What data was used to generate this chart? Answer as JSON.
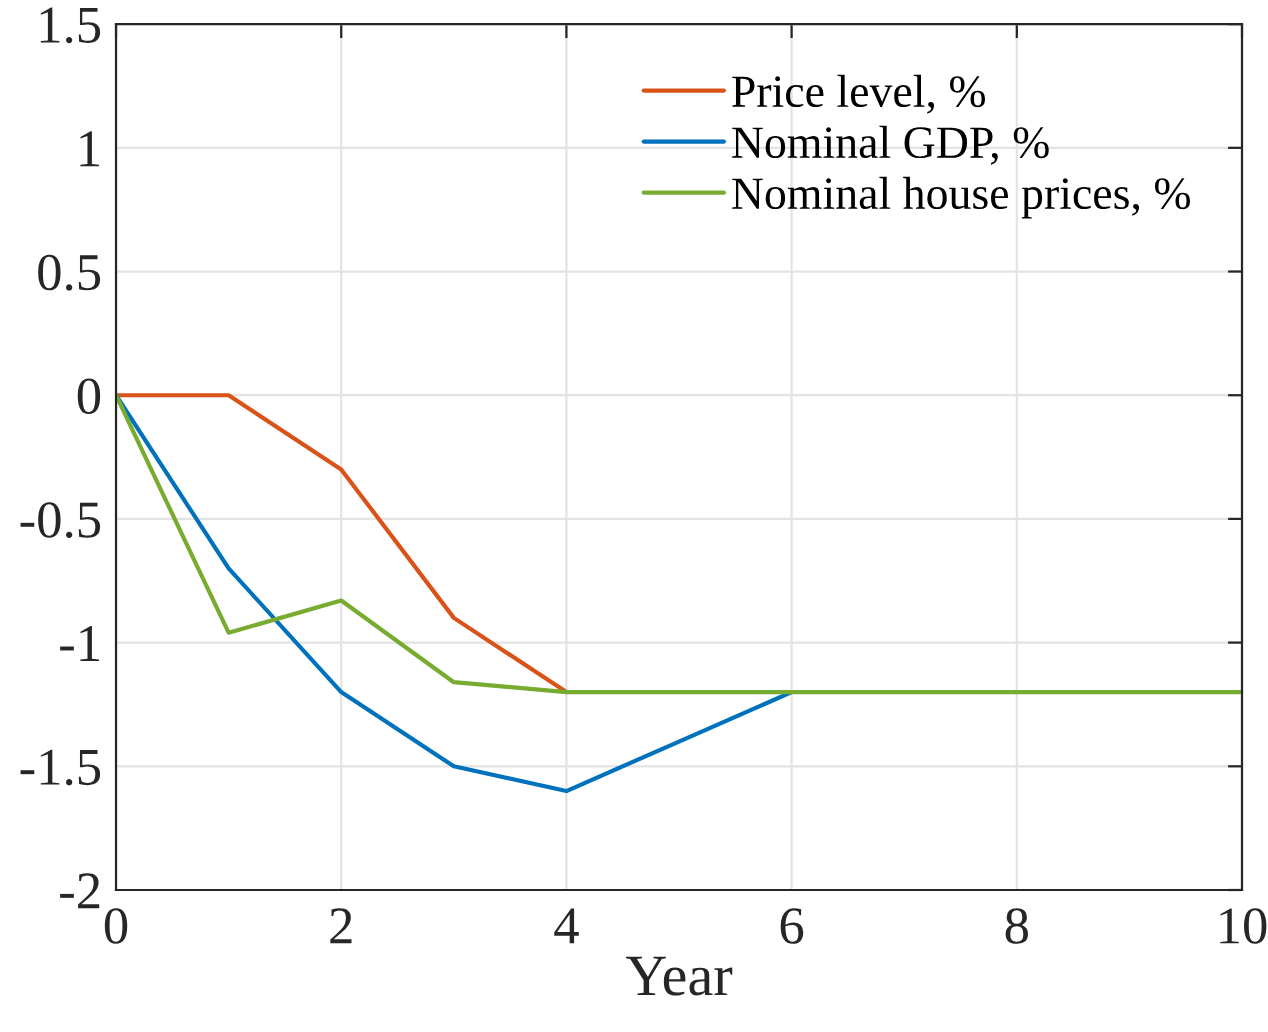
{
  "chart_data": {
    "type": "line",
    "xlabel": "Year",
    "x": [
      0,
      1,
      2,
      3,
      4,
      5,
      6,
      7,
      8,
      9,
      10
    ],
    "series": [
      {
        "name": "Price level, %",
        "color": "#d95319",
        "values": [
          0,
          0,
          -0.3,
          -0.9,
          -1.2,
          null,
          null,
          null,
          null,
          null,
          null
        ]
      },
      {
        "name": "Nominal GDP, %",
        "color": "#0072bd",
        "values": [
          0,
          -0.7,
          -1.2,
          -1.5,
          -1.6,
          -1.4,
          -1.2,
          null,
          null,
          null,
          null
        ]
      },
      {
        "name": "Nominal house prices, %",
        "color": "#77ac30",
        "values": [
          0,
          -0.96,
          -0.83,
          -1.16,
          -1.2,
          -1.2,
          -1.2,
          -1.2,
          -1.2,
          -1.2,
          -1.2
        ]
      }
    ],
    "xlim": [
      0,
      10
    ],
    "xticks": [
      0,
      2,
      4,
      6,
      8,
      10
    ],
    "ylim": [
      -2,
      1.5
    ],
    "yticks": [
      -2,
      -1.5,
      -1,
      -0.5,
      0,
      0.5,
      1,
      1.5
    ],
    "grid": true,
    "legend": "top right",
    "line_style": "solid",
    "marker": "none"
  }
}
